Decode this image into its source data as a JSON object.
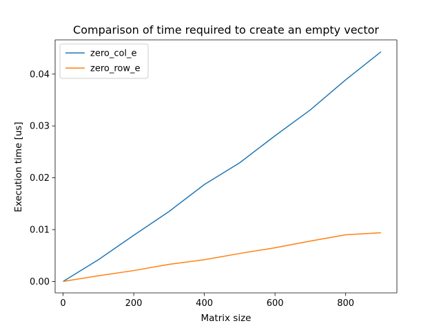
{
  "chart_data": {
    "type": "line",
    "title": "Comparison of time required to create an empty vector",
    "xlabel": "Matrix size",
    "ylabel": "Execution time [us]",
    "xlim": [
      -22.5,
      945
    ],
    "ylim": [
      -0.0022,
      0.0466
    ],
    "xticks": [
      0,
      200,
      400,
      600,
      800
    ],
    "xtick_labels": [
      "0",
      "200",
      "400",
      "600",
      "800"
    ],
    "yticks": [
      0.0,
      0.01,
      0.02,
      0.03,
      0.04
    ],
    "ytick_labels": [
      "0.00",
      "0.01",
      "0.02",
      "0.03",
      "0.04"
    ],
    "grid": false,
    "legend_position": "upper-left",
    "x": [
      0,
      100,
      200,
      300,
      400,
      500,
      600,
      700,
      800,
      900
    ],
    "series": [
      {
        "name": "zero_col_e",
        "color": "#1f77b4",
        "values": [
          0.0,
          0.0042,
          0.0089,
          0.0135,
          0.0187,
          0.0229,
          0.0281,
          0.0331,
          0.0389,
          0.0443
        ]
      },
      {
        "name": "zero_row_e",
        "color": "#ff7f0e",
        "values": [
          0.0,
          0.0011,
          0.0021,
          0.0033,
          0.0042,
          0.0054,
          0.0065,
          0.0078,
          0.009,
          0.0094
        ]
      }
    ]
  }
}
